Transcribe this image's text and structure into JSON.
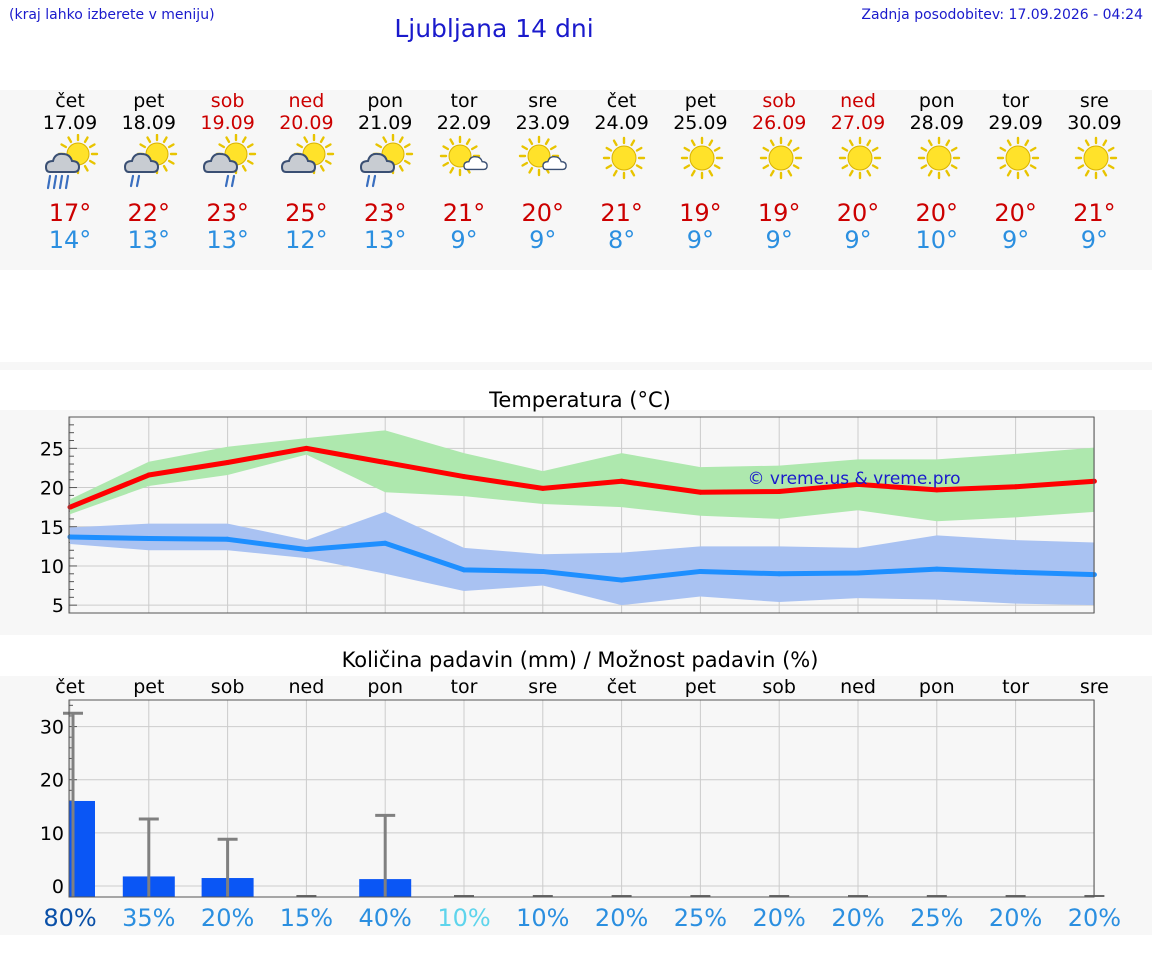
{
  "header": {
    "hint": "(kraj lahko izberete v meniju)",
    "title": "Ljubljana 14 dni",
    "updated": "Zadnja posodobitev: 17.09.2026 - 04:24"
  },
  "days": [
    {
      "name": "čet",
      "date": "17.09",
      "weekend": false,
      "icon": "sun-cloud-heavy-rain-icon",
      "tmax": "17°",
      "tmin": "14°"
    },
    {
      "name": "pet",
      "date": "18.09",
      "weekend": false,
      "icon": "sun-cloud-rain-icon",
      "tmax": "22°",
      "tmin": "13°"
    },
    {
      "name": "sob",
      "date": "19.09",
      "weekend": true,
      "icon": "sun-cloud-shower-icon",
      "tmax": "23°",
      "tmin": "13°"
    },
    {
      "name": "ned",
      "date": "20.09",
      "weekend": true,
      "icon": "sun-cloud-icon",
      "tmax": "25°",
      "tmin": "12°"
    },
    {
      "name": "pon",
      "date": "21.09",
      "weekend": false,
      "icon": "sun-cloud-rain-icon",
      "tmax": "23°",
      "tmin": "13°"
    },
    {
      "name": "tor",
      "date": "22.09",
      "weekend": false,
      "icon": "sun-small-cloud-icon",
      "tmax": "21°",
      "tmin": "9°"
    },
    {
      "name": "sre",
      "date": "23.09",
      "weekend": false,
      "icon": "sun-small-cloud-icon",
      "tmax": "20°",
      "tmin": "9°"
    },
    {
      "name": "čet",
      "date": "24.09",
      "weekend": false,
      "icon": "sun-icon",
      "tmax": "21°",
      "tmin": "8°"
    },
    {
      "name": "pet",
      "date": "25.09",
      "weekend": false,
      "icon": "sun-icon",
      "tmax": "19°",
      "tmin": "9°"
    },
    {
      "name": "sob",
      "date": "26.09",
      "weekend": true,
      "icon": "sun-icon",
      "tmax": "19°",
      "tmin": "9°"
    },
    {
      "name": "ned",
      "date": "27.09",
      "weekend": true,
      "icon": "sun-icon",
      "tmax": "20°",
      "tmin": "9°"
    },
    {
      "name": "pon",
      "date": "28.09",
      "weekend": false,
      "icon": "sun-icon",
      "tmax": "20°",
      "tmin": "10°"
    },
    {
      "name": "tor",
      "date": "29.09",
      "weekend": false,
      "icon": "sun-icon",
      "tmax": "20°",
      "tmin": "9°"
    },
    {
      "name": "sre",
      "date": "30.09",
      "weekend": false,
      "icon": "sun-icon",
      "tmax": "21°",
      "tmin": "9°"
    }
  ],
  "colors": {
    "max_line": "#ff0000",
    "max_band": "#aee8ae",
    "min_line": "#1e8fff",
    "min_band": "#a9c2f2",
    "precip_bar": "#0a56f5",
    "weekend_text": "#cc0000",
    "header_text": "#1a1acc"
  },
  "chart_data": [
    {
      "type": "line",
      "title": "Temperatura (°C)",
      "watermark": "© vreme.us & vreme.pro",
      "x": [
        "17.09",
        "18.09",
        "19.09",
        "20.09",
        "21.09",
        "22.09",
        "23.09",
        "24.09",
        "25.09",
        "26.09",
        "27.09",
        "28.09",
        "29.09",
        "30.09"
      ],
      "ylim": [
        4,
        29
      ],
      "yticks": [
        5,
        10,
        15,
        20,
        25
      ],
      "grid": true,
      "series": [
        {
          "values": [
            17.5,
            21.6,
            23.2,
            25.0,
            23.2,
            21.4,
            19.9,
            20.8,
            19.4,
            19.5,
            20.4,
            19.7,
            20.1,
            20.8
          ],
          "range_low": [
            16.6,
            20.2,
            21.6,
            24.2,
            19.4,
            18.9,
            17.9,
            17.5,
            16.4,
            16.0,
            17.1,
            15.7,
            16.2,
            16.9
          ],
          "range_high": [
            18.5,
            23.3,
            25.2,
            26.3,
            27.3,
            24.4,
            22.1,
            24.4,
            22.6,
            22.8,
            23.6,
            23.6,
            24.3,
            25.1
          ]
        },
        {
          "values": [
            13.7,
            13.5,
            13.4,
            12.1,
            12.9,
            9.5,
            9.3,
            8.2,
            9.3,
            9.0,
            9.1,
            9.6,
            9.2,
            8.9
          ],
          "range_low": [
            12.8,
            12.0,
            12.0,
            11.0,
            9.0,
            6.8,
            7.5,
            5.0,
            6.1,
            5.4,
            5.9,
            5.7,
            5.2,
            5.0
          ],
          "range_high": [
            14.9,
            15.4,
            15.4,
            13.3,
            16.9,
            12.3,
            11.5,
            11.7,
            12.5,
            12.5,
            12.3,
            13.9,
            13.3,
            13.0
          ]
        }
      ]
    },
    {
      "type": "bar",
      "title": "Količina padavin (mm) / Možnost padavin (%)",
      "categories": [
        "čet",
        "pet",
        "sob",
        "ned",
        "pon",
        "tor",
        "sre",
        "čet",
        "pet",
        "sob",
        "ned",
        "pon",
        "tor",
        "sre"
      ],
      "values": [
        16.0,
        1.8,
        1.5,
        0,
        1.3,
        0,
        0,
        0,
        0,
        0,
        0,
        0,
        0,
        0
      ],
      "range_high": [
        32.5,
        12.6,
        8.8,
        0,
        13.3,
        0,
        0,
        0,
        0,
        0,
        0,
        0,
        0,
        0
      ],
      "probability": [
        "80%",
        "35%",
        "20%",
        "15%",
        "40%",
        "10%",
        "10%",
        "20%",
        "25%",
        "20%",
        "20%",
        "25%",
        "20%",
        "20%"
      ],
      "probability_colors": [
        "#0a50a8",
        "#2b8fe0",
        "#2b8fe0",
        "#2b8fe0",
        "#2b8fe0",
        "#5ed4ec",
        "#2b8fe0",
        "#2b8fe0",
        "#2b8fe0",
        "#2b8fe0",
        "#2b8fe0",
        "#2b8fe0",
        "#2b8fe0",
        "#2b8fe0"
      ],
      "ylim": [
        0,
        35
      ],
      "yticks": [
        0,
        10,
        20,
        30
      ],
      "grid": true
    }
  ]
}
